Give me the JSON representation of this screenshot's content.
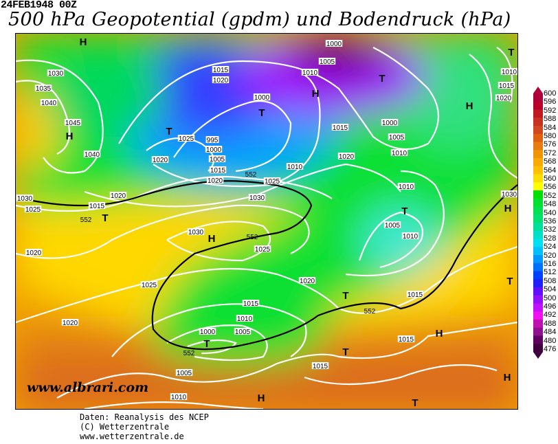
{
  "header": {
    "date": "24FEB1948 00Z",
    "title": "500 hPa Geopotential (gpdm) und Bodendruck (hPa)"
  },
  "map": {
    "watermark": "www.albrari.com",
    "pressure_centers": [
      "H",
      "T",
      "H",
      "T",
      "T",
      "H",
      "H",
      "T",
      "T",
      "H",
      "T",
      "T",
      "T",
      "T",
      "H",
      "H",
      "T",
      "H",
      "T",
      "H"
    ],
    "isobar_labels": [
      "1030",
      "1035",
      "1040",
      "1045",
      "1040",
      "1020",
      "1025",
      "1015",
      "1020",
      "1000",
      "1010",
      "1005",
      "1000",
      "1000",
      "1005",
      "1010",
      "1015",
      "1020",
      "1010",
      "1010",
      "1005",
      "1010",
      "995",
      "1000",
      "1005",
      "1015",
      "1020",
      "1025",
      "1030",
      "1030",
      "1025",
      "1020",
      "1015",
      "1025",
      "1030",
      "1020",
      "1025",
      "1015",
      "1020",
      "1010",
      "1005",
      "1000",
      "1020",
      "1005",
      "1010",
      "1015",
      "1015",
      "1015",
      "1010",
      "1015",
      "1020",
      "1030"
    ],
    "geopotential_labels": [
      "552",
      "552",
      "552",
      "552",
      "552"
    ],
    "contour_color": "#ffffff",
    "highlight_contour": "552"
  },
  "colorbar": {
    "labels": [
      "600",
      "596",
      "592",
      "588",
      "584",
      "580",
      "576",
      "572",
      "568",
      "564",
      "560",
      "556",
      "552",
      "548",
      "540",
      "536",
      "532",
      "528",
      "524",
      "520",
      "516",
      "512",
      "508",
      "504",
      "500",
      "496",
      "492",
      "488",
      "484",
      "480",
      "476"
    ],
    "colors": [
      "#b0003a",
      "#b8002a",
      "#c01a20",
      "#c83020",
      "#d04820",
      "#e06010",
      "#e87c10",
      "#f09400",
      "#f8aa00",
      "#ffc000",
      "#ffdc00",
      "#ffff00",
      "#00e000",
      "#00e030",
      "#00e050",
      "#00e070",
      "#00e098",
      "#00e0c8",
      "#00e0f0",
      "#00c0ff",
      "#0098ff",
      "#0070ff",
      "#0040ff",
      "#2020ff",
      "#6010ff",
      "#9010ff",
      "#c010ff",
      "#f010f0",
      "#c010b0",
      "#901090",
      "#600060",
      "#400040"
    ]
  },
  "footer": {
    "line1": "Daten: Reanalysis des NCEP",
    "line2": "(C) Wetterzentrale",
    "line3": "www.wetterzentrale.de"
  }
}
